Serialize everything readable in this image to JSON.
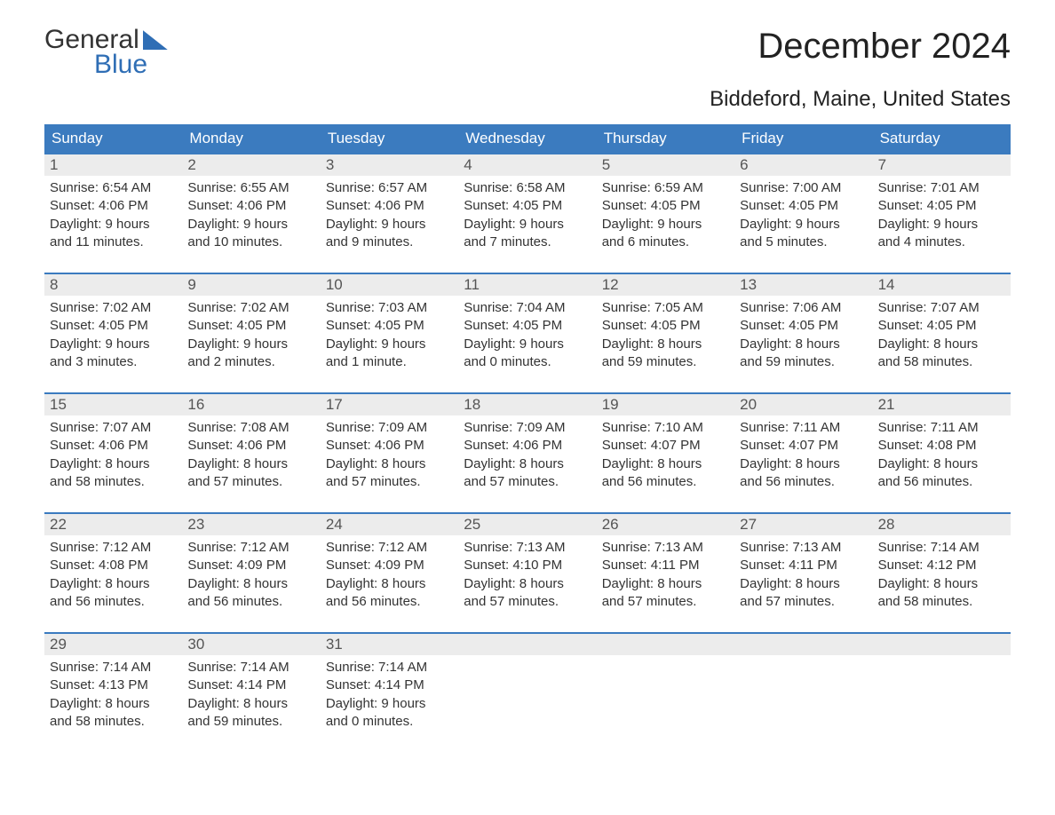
{
  "logo": {
    "top": "General",
    "bottom": "Blue"
  },
  "title": "December 2024",
  "location": "Biddeford, Maine, United States",
  "colors": {
    "header_bg": "#3b7bbf",
    "header_text": "#ffffff",
    "daynum_bg": "#ececec",
    "border": "#3b7bbf",
    "logo_accent": "#2f6eb5",
    "body_text": "#333333"
  },
  "day_headers": [
    "Sunday",
    "Monday",
    "Tuesday",
    "Wednesday",
    "Thursday",
    "Friday",
    "Saturday"
  ],
  "weeks": [
    [
      {
        "n": "1",
        "sr": "Sunrise: 6:54 AM",
        "ss": "Sunset: 4:06 PM",
        "d1": "Daylight: 9 hours",
        "d2": "and 11 minutes."
      },
      {
        "n": "2",
        "sr": "Sunrise: 6:55 AM",
        "ss": "Sunset: 4:06 PM",
        "d1": "Daylight: 9 hours",
        "d2": "and 10 minutes."
      },
      {
        "n": "3",
        "sr": "Sunrise: 6:57 AM",
        "ss": "Sunset: 4:06 PM",
        "d1": "Daylight: 9 hours",
        "d2": "and 9 minutes."
      },
      {
        "n": "4",
        "sr": "Sunrise: 6:58 AM",
        "ss": "Sunset: 4:05 PM",
        "d1": "Daylight: 9 hours",
        "d2": "and 7 minutes."
      },
      {
        "n": "5",
        "sr": "Sunrise: 6:59 AM",
        "ss": "Sunset: 4:05 PM",
        "d1": "Daylight: 9 hours",
        "d2": "and 6 minutes."
      },
      {
        "n": "6",
        "sr": "Sunrise: 7:00 AM",
        "ss": "Sunset: 4:05 PM",
        "d1": "Daylight: 9 hours",
        "d2": "and 5 minutes."
      },
      {
        "n": "7",
        "sr": "Sunrise: 7:01 AM",
        "ss": "Sunset: 4:05 PM",
        "d1": "Daylight: 9 hours",
        "d2": "and 4 minutes."
      }
    ],
    [
      {
        "n": "8",
        "sr": "Sunrise: 7:02 AM",
        "ss": "Sunset: 4:05 PM",
        "d1": "Daylight: 9 hours",
        "d2": "and 3 minutes."
      },
      {
        "n": "9",
        "sr": "Sunrise: 7:02 AM",
        "ss": "Sunset: 4:05 PM",
        "d1": "Daylight: 9 hours",
        "d2": "and 2 minutes."
      },
      {
        "n": "10",
        "sr": "Sunrise: 7:03 AM",
        "ss": "Sunset: 4:05 PM",
        "d1": "Daylight: 9 hours",
        "d2": "and 1 minute."
      },
      {
        "n": "11",
        "sr": "Sunrise: 7:04 AM",
        "ss": "Sunset: 4:05 PM",
        "d1": "Daylight: 9 hours",
        "d2": "and 0 minutes."
      },
      {
        "n": "12",
        "sr": "Sunrise: 7:05 AM",
        "ss": "Sunset: 4:05 PM",
        "d1": "Daylight: 8 hours",
        "d2": "and 59 minutes."
      },
      {
        "n": "13",
        "sr": "Sunrise: 7:06 AM",
        "ss": "Sunset: 4:05 PM",
        "d1": "Daylight: 8 hours",
        "d2": "and 59 minutes."
      },
      {
        "n": "14",
        "sr": "Sunrise: 7:07 AM",
        "ss": "Sunset: 4:05 PM",
        "d1": "Daylight: 8 hours",
        "d2": "and 58 minutes."
      }
    ],
    [
      {
        "n": "15",
        "sr": "Sunrise: 7:07 AM",
        "ss": "Sunset: 4:06 PM",
        "d1": "Daylight: 8 hours",
        "d2": "and 58 minutes."
      },
      {
        "n": "16",
        "sr": "Sunrise: 7:08 AM",
        "ss": "Sunset: 4:06 PM",
        "d1": "Daylight: 8 hours",
        "d2": "and 57 minutes."
      },
      {
        "n": "17",
        "sr": "Sunrise: 7:09 AM",
        "ss": "Sunset: 4:06 PM",
        "d1": "Daylight: 8 hours",
        "d2": "and 57 minutes."
      },
      {
        "n": "18",
        "sr": "Sunrise: 7:09 AM",
        "ss": "Sunset: 4:06 PM",
        "d1": "Daylight: 8 hours",
        "d2": "and 57 minutes."
      },
      {
        "n": "19",
        "sr": "Sunrise: 7:10 AM",
        "ss": "Sunset: 4:07 PM",
        "d1": "Daylight: 8 hours",
        "d2": "and 56 minutes."
      },
      {
        "n": "20",
        "sr": "Sunrise: 7:11 AM",
        "ss": "Sunset: 4:07 PM",
        "d1": "Daylight: 8 hours",
        "d2": "and 56 minutes."
      },
      {
        "n": "21",
        "sr": "Sunrise: 7:11 AM",
        "ss": "Sunset: 4:08 PM",
        "d1": "Daylight: 8 hours",
        "d2": "and 56 minutes."
      }
    ],
    [
      {
        "n": "22",
        "sr": "Sunrise: 7:12 AM",
        "ss": "Sunset: 4:08 PM",
        "d1": "Daylight: 8 hours",
        "d2": "and 56 minutes."
      },
      {
        "n": "23",
        "sr": "Sunrise: 7:12 AM",
        "ss": "Sunset: 4:09 PM",
        "d1": "Daylight: 8 hours",
        "d2": "and 56 minutes."
      },
      {
        "n": "24",
        "sr": "Sunrise: 7:12 AM",
        "ss": "Sunset: 4:09 PM",
        "d1": "Daylight: 8 hours",
        "d2": "and 56 minutes."
      },
      {
        "n": "25",
        "sr": "Sunrise: 7:13 AM",
        "ss": "Sunset: 4:10 PM",
        "d1": "Daylight: 8 hours",
        "d2": "and 57 minutes."
      },
      {
        "n": "26",
        "sr": "Sunrise: 7:13 AM",
        "ss": "Sunset: 4:11 PM",
        "d1": "Daylight: 8 hours",
        "d2": "and 57 minutes."
      },
      {
        "n": "27",
        "sr": "Sunrise: 7:13 AM",
        "ss": "Sunset: 4:11 PM",
        "d1": "Daylight: 8 hours",
        "d2": "and 57 minutes."
      },
      {
        "n": "28",
        "sr": "Sunrise: 7:14 AM",
        "ss": "Sunset: 4:12 PM",
        "d1": "Daylight: 8 hours",
        "d2": "and 58 minutes."
      }
    ],
    [
      {
        "n": "29",
        "sr": "Sunrise: 7:14 AM",
        "ss": "Sunset: 4:13 PM",
        "d1": "Daylight: 8 hours",
        "d2": "and 58 minutes."
      },
      {
        "n": "30",
        "sr": "Sunrise: 7:14 AM",
        "ss": "Sunset: 4:14 PM",
        "d1": "Daylight: 8 hours",
        "d2": "and 59 minutes."
      },
      {
        "n": "31",
        "sr": "Sunrise: 7:14 AM",
        "ss": "Sunset: 4:14 PM",
        "d1": "Daylight: 9 hours",
        "d2": "and 0 minutes."
      },
      {
        "n": "",
        "sr": "",
        "ss": "",
        "d1": "",
        "d2": ""
      },
      {
        "n": "",
        "sr": "",
        "ss": "",
        "d1": "",
        "d2": ""
      },
      {
        "n": "",
        "sr": "",
        "ss": "",
        "d1": "",
        "d2": ""
      },
      {
        "n": "",
        "sr": "",
        "ss": "",
        "d1": "",
        "d2": ""
      }
    ]
  ]
}
